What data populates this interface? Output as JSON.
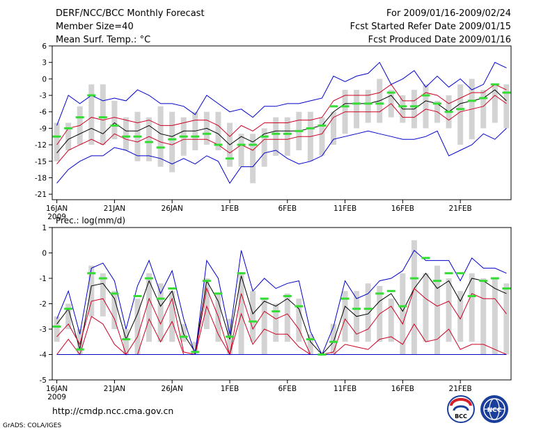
{
  "header": {
    "title": "DERF/NCC/BCC Monthly Forecast",
    "member_size": "Member Size=40",
    "variable": "Mean Surf. Temp.: °C",
    "forecast_period": "For 2009/01/16-2009/02/24",
    "started_refer": "Fcst Started Refer Date 2009/01/15",
    "produced": "Fcst Produced Date 2009/01/16"
  },
  "footer": {
    "url": "http://cmdp.ncc.cma.gov.cn",
    "credit": "GrADS: COLA/IGES",
    "logo_bcc_text": "BCC",
    "logo_ncc_text": "NCC"
  },
  "colors": {
    "ensemble_mean": "#000000",
    "member_bounds": "#0000cc",
    "spread_bounds": "#cc0022",
    "box": "#d3d3d3",
    "marker": "#33dd33",
    "baseline": "#3333cc"
  },
  "chart_data": [
    {
      "type": "line",
      "title": "Mean Surf. Temp.: °C",
      "x": [
        1,
        2,
        3,
        4,
        5,
        6,
        7,
        8,
        9,
        10,
        11,
        12,
        13,
        14,
        15,
        16,
        17,
        18,
        19,
        20,
        21,
        22,
        23,
        24,
        25,
        26,
        27,
        28,
        29,
        30,
        31,
        32,
        33,
        34,
        35,
        36,
        37,
        38,
        39,
        40
      ],
      "xlim": [
        0.6,
        40.4
      ],
      "ylim": [
        -22,
        6
      ],
      "yticks": [
        6,
        3,
        0,
        -3,
        -6,
        -9,
        -12,
        -15,
        -18,
        -21
      ],
      "xtick_positions": [
        1,
        6,
        11,
        16,
        21,
        26,
        31,
        36
      ],
      "xtick_labels": [
        "16JAN",
        "21JAN",
        "26JAN",
        "1FEB",
        "6FEB",
        "11FEB",
        "16FEB",
        "21FEB"
      ],
      "xtick_year": "2009",
      "boxes": {
        "low": [
          -15,
          -13,
          -12,
          -12,
          -12,
          -11,
          -13,
          -15,
          -15,
          -16,
          -17,
          -14,
          -13,
          -12,
          -13,
          -16,
          -16,
          -19,
          -16,
          -14,
          -14,
          -13,
          -15,
          -14,
          -12,
          -10,
          -9,
          -8,
          -8,
          -7,
          -8,
          -9,
          -9,
          -8,
          -9,
          -12,
          -11,
          -9,
          -8,
          -9
        ],
        "high": [
          -8,
          -8,
          -5,
          -1,
          -1,
          -4,
          -7,
          -6,
          -7,
          -5,
          -6,
          -7,
          -6,
          -6,
          -6,
          -8,
          -10,
          -10,
          -9,
          -7,
          -7,
          -6,
          -6,
          -7,
          -6,
          -2,
          -2,
          -2,
          0,
          -2,
          -3,
          -2,
          -1,
          -4,
          -3,
          -1,
          0,
          -2,
          -1,
          -1
        ]
      },
      "series": [
        {
          "name": "Ensemble mean",
          "color": "#000000",
          "values": [
            -13.5,
            -11,
            -10,
            -9,
            -10,
            -8,
            -9.5,
            -9.5,
            -8.5,
            -10,
            -10.5,
            -9.5,
            -9.5,
            -9,
            -10,
            -12,
            -10.5,
            -11.5,
            -10,
            -9.5,
            -9.5,
            -9.5,
            -9,
            -8.5,
            -6,
            -4.5,
            -4.5,
            -4.5,
            -4,
            -3,
            -5.5,
            -5.5,
            -4,
            -4.5,
            -6,
            -4.5,
            -4,
            -3.5,
            -2,
            -4
          ]
        },
        {
          "name": "Upper spread",
          "color": "#cc0022",
          "values": [
            -12,
            -9,
            -8.5,
            -7,
            -7.5,
            -7,
            -7.5,
            -8,
            -7.5,
            -8.5,
            -8.5,
            -8,
            -7.5,
            -7.5,
            -8.5,
            -10.5,
            -8.5,
            -9.5,
            -8,
            -8,
            -8,
            -7.5,
            -7.5,
            -7,
            -4,
            -3,
            -3,
            -3,
            -2.5,
            -1,
            -4,
            -4,
            -2.5,
            -3,
            -4.5,
            -3.5,
            -2.5,
            -2.5,
            -1,
            -2
          ]
        },
        {
          "name": "Lower spread",
          "color": "#cc0022",
          "values": [
            -15.5,
            -13,
            -12,
            -11,
            -12,
            -10,
            -11,
            -11.5,
            -10.5,
            -11.5,
            -12,
            -11,
            -11,
            -11,
            -12,
            -13.5,
            -12,
            -13,
            -11,
            -11,
            -11,
            -10.5,
            -10.5,
            -10,
            -7,
            -6,
            -6,
            -6,
            -6,
            -4.5,
            -7,
            -7,
            -5.5,
            -6,
            -7.5,
            -6,
            -5.5,
            -5,
            -3,
            -4.5
          ]
        },
        {
          "name": "Maximum",
          "color": "#0000cc",
          "values": [
            -8.5,
            -3,
            -4.5,
            -3,
            -4,
            -3.5,
            -4,
            -2,
            -3,
            -4.5,
            -4.5,
            -5,
            -6.5,
            -3,
            -4.5,
            -6,
            -5.5,
            -7,
            -5,
            -5,
            -4.5,
            -4.5,
            -4,
            -3.5,
            0.5,
            -0.5,
            0.5,
            1,
            3,
            -1,
            0,
            1.5,
            -1.5,
            0.5,
            -1.5,
            0,
            -2,
            -1,
            3,
            2
          ]
        },
        {
          "name": "Minimum",
          "color": "#0000cc",
          "values": [
            -19,
            -16.5,
            -15,
            -14,
            -14,
            -12.5,
            -13,
            -14,
            -14,
            -14.5,
            -15.5,
            -14.5,
            -15.5,
            -14,
            -15,
            -19,
            -16,
            -16,
            -13.5,
            -13,
            -14.5,
            -15.5,
            -15,
            -14,
            -11,
            -10.5,
            -10,
            -9.5,
            -10,
            -10.5,
            -11,
            -11,
            -10.5,
            -9.5,
            -14,
            -13,
            -12,
            -10,
            -11,
            -9
          ]
        }
      ],
      "markers": [
        -10.5,
        -9,
        -7,
        -3,
        -7,
        -8.5,
        -10.5,
        -10.5,
        -11.5,
        -12.5,
        -11,
        -10.5,
        -10.5,
        -10,
        -12,
        -14.5,
        -12,
        -12,
        -10.5,
        -10,
        -10,
        -9.5,
        -9,
        -8.5,
        -5,
        -5,
        -4.5,
        -4.5,
        -4.5,
        -2.5,
        -5,
        -5,
        -3,
        -4.5,
        -6,
        -5.5,
        -4,
        -3.5,
        -1,
        -2.5
      ]
    },
    {
      "type": "line",
      "title": "Prec.: log(mm/d)",
      "x": [
        1,
        2,
        3,
        4,
        5,
        6,
        7,
        8,
        9,
        10,
        11,
        12,
        13,
        14,
        15,
        16,
        17,
        18,
        19,
        20,
        21,
        22,
        23,
        24,
        25,
        26,
        27,
        28,
        29,
        30,
        31,
        32,
        33,
        34,
        35,
        36,
        37,
        38,
        39,
        40
      ],
      "xlim": [
        0.6,
        40.4
      ],
      "ylim": [
        -5,
        1
      ],
      "yticks": [
        1,
        0,
        -1,
        -2,
        -3,
        -4,
        -5
      ],
      "xtick_positions": [
        1,
        6,
        11,
        16,
        21,
        26,
        31,
        36
      ],
      "xtick_labels": [
        "16JAN",
        "21JAN",
        "26JAN",
        "1FEB",
        "6FEB",
        "11FEB",
        "16FEB",
        "21FEB"
      ],
      "xtick_year": "2009",
      "baseline": -4,
      "boxes": {
        "low": [
          -3.5,
          -3,
          -4,
          -2.5,
          -2.5,
          -3,
          -4,
          -4,
          -3.5,
          -3.5,
          -3.5,
          -3.5,
          -4,
          -3,
          -3.5,
          -4,
          -4,
          -3.5,
          -4,
          -3.5,
          -3.5,
          -3.5,
          -4,
          -4,
          -4,
          -3.5,
          -3.5,
          -3.5,
          -3.5,
          -3.5,
          -4,
          -4,
          -3.5,
          -4,
          -3.5,
          -3.5,
          -3.5,
          -4,
          -4,
          -4
        ],
        "high": [
          -2.5,
          -2,
          -3,
          -0.5,
          -0.8,
          -1.5,
          -3,
          -1.8,
          -0.8,
          -1.2,
          -1.5,
          -2.8,
          -3.5,
          -1,
          -1.6,
          -2.6,
          -0.8,
          -1.5,
          -1.8,
          -2,
          -1.6,
          -1.8,
          -3.2,
          -4,
          -2.8,
          -1.5,
          -1.5,
          -1.2,
          -1.3,
          -1.8,
          -0.8,
          0.5,
          -0.8,
          -0.5,
          -1,
          -1.5,
          -0.8,
          -1,
          -1,
          -1.2
        ]
      },
      "series": [
        {
          "name": "Ensemble mean",
          "color": "#000000",
          "values": [
            -2.8,
            -2.2,
            -3.8,
            -1.3,
            -1.2,
            -1.8,
            -3.4,
            -2.4,
            -1.1,
            -2.1,
            -1.5,
            -3.2,
            -3.9,
            -1.1,
            -1.9,
            -3.4,
            -0.9,
            -2.4,
            -1.9,
            -2.1,
            -1.8,
            -2.2,
            -3.5,
            -4,
            -3.5,
            -2.1,
            -2.5,
            -2.4,
            -1.9,
            -1.6,
            -2.3,
            -1.4,
            -0.8,
            -1.4,
            -1.1,
            -1.9,
            -1.0,
            -1.1,
            -1.4,
            -1.6
          ]
        },
        {
          "name": "Upper spread",
          "color": "#cc0022",
          "values": [
            -3.3,
            -2.8,
            -3.6,
            -1.9,
            -1.8,
            -2.6,
            -4,
            -3.3,
            -1.8,
            -2.8,
            -1.8,
            -3.9,
            -4,
            -1.4,
            -2.5,
            -4,
            -1.6,
            -3,
            -2.3,
            -2.6,
            -2.4,
            -3,
            -4,
            -4,
            -3.9,
            -2.6,
            -3.2,
            -3.0,
            -2.4,
            -2.1,
            -2.8,
            -1.4,
            -1.8,
            -2.1,
            -1.9,
            -2.6,
            -1.6,
            -1.8,
            -1.8,
            -2.4
          ]
        },
        {
          "name": "Lower spread",
          "color": "#cc0022",
          "values": [
            -4,
            -3.4,
            -4,
            -2.5,
            -2.8,
            -3.6,
            -4,
            -4,
            -2.6,
            -3.5,
            -2.7,
            -4,
            -4,
            -2.1,
            -3.2,
            -4,
            -2.4,
            -3.6,
            -3,
            -3.2,
            -3.2,
            -3.7,
            -4,
            -4,
            -4,
            -3.6,
            -3.7,
            -3.8,
            -3.4,
            -3.3,
            -3.6,
            -2.8,
            -3.5,
            -3.4,
            -3.0,
            -3.8,
            -3.6,
            -3.6,
            -3.8,
            -4
          ]
        },
        {
          "name": "Maximum",
          "color": "#0000cc",
          "values": [
            -2.6,
            -1.5,
            -3.2,
            -0.6,
            -0.4,
            -1.1,
            -3.0,
            -1.3,
            -0.3,
            -1.6,
            -0.7,
            -2.6,
            -4,
            -0.3,
            -1.0,
            -3.2,
            0.1,
            -1.5,
            -1.0,
            -1.4,
            -1.2,
            -1.1,
            -3.1,
            -4,
            -2.9,
            -1.1,
            -1.8,
            -1.6,
            -1.1,
            -1.0,
            -0.7,
            0.1,
            -0.3,
            -0.3,
            -0.3,
            -1.1,
            -0.2,
            -0.6,
            -0.6,
            -0.8
          ]
        },
        {
          "name": "Minimum",
          "color": "#0000cc",
          "values": [
            -4,
            -4,
            -4,
            -4,
            -4,
            -4,
            -4,
            -4,
            -4,
            -4,
            -4,
            -4,
            -4,
            -4,
            -4,
            -4,
            -4,
            -4,
            -4,
            -4,
            -4,
            -4,
            -4,
            -4,
            -4,
            -4,
            -4,
            -4,
            -4,
            -4,
            -4,
            -4,
            -4,
            -4,
            -4,
            -4,
            -4,
            -4,
            -4,
            -4
          ]
        }
      ],
      "markers": [
        -2.9,
        -2.2,
        -3.8,
        -0.8,
        -1.0,
        -1.6,
        -3.4,
        -1.7,
        -1.0,
        -1.8,
        -1.4,
        -3.3,
        -3.9,
        -1.1,
        -1.6,
        -3.3,
        -0.8,
        -2.7,
        -1.8,
        -2.3,
        -1.7,
        -2.1,
        -3.4,
        -4,
        -3.5,
        -1.8,
        -2.2,
        -2.2,
        -1.6,
        -1.5,
        -2.1,
        -1.0,
        -0.2,
        -1.1,
        -0.8,
        -0.8,
        -1.7,
        -1.1,
        -1.0,
        -1.4
      ]
    }
  ]
}
